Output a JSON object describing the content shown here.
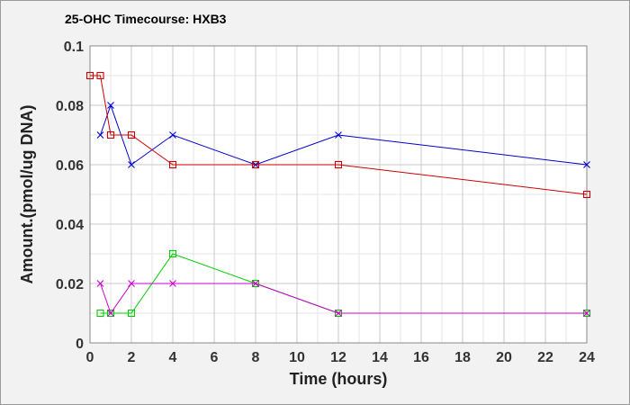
{
  "chart_data": {
    "type": "line",
    "title": "25-OHC Timecourse: HXB3",
    "xlabel": "Time (hours)",
    "ylabel": "Amount.(pmol/ug DNA)",
    "xlim": [
      0,
      24
    ],
    "ylim": [
      0,
      0.1
    ],
    "xticks": [
      0,
      2,
      4,
      6,
      8,
      10,
      12,
      14,
      16,
      18,
      20,
      22,
      24
    ],
    "xtick_labels": [
      "0",
      "2",
      "4",
      "6",
      "8",
      "10",
      "12",
      "14",
      "16",
      "18",
      "20",
      "22",
      "24"
    ],
    "yticks": [
      0,
      0.02,
      0.04,
      0.06,
      0.08,
      0.1
    ],
    "ytick_labels": [
      "0",
      "0.02",
      "0.04",
      "0.06",
      "0.08",
      "0.1"
    ],
    "grid": true,
    "series": [
      {
        "color": "#0000cc",
        "marker": "x",
        "x": [
          0.5,
          1,
          2,
          4,
          8,
          12,
          24
        ],
        "y": [
          0.07,
          0.08,
          0.06,
          0.07,
          0.06,
          0.07,
          0.06
        ]
      },
      {
        "color": "#cc0000",
        "marker": "square",
        "x": [
          0,
          0.5,
          1,
          2,
          4,
          8,
          12,
          24
        ],
        "y": [
          0.09,
          0.09,
          0.07,
          0.07,
          0.06,
          0.06,
          0.06,
          0.05
        ]
      },
      {
        "color": "#00cc00",
        "marker": "square",
        "x": [
          0.5,
          1,
          2,
          4,
          8,
          12,
          24
        ],
        "y": [
          0.01,
          0.01,
          0.01,
          0.03,
          0.02,
          0.01,
          0.01
        ]
      },
      {
        "color": "#cc00cc",
        "marker": "x",
        "x": [
          0.5,
          1,
          2,
          4,
          8,
          12,
          24
        ],
        "y": [
          0.02,
          0.01,
          0.02,
          0.02,
          0.02,
          0.01,
          0.01
        ]
      }
    ]
  }
}
